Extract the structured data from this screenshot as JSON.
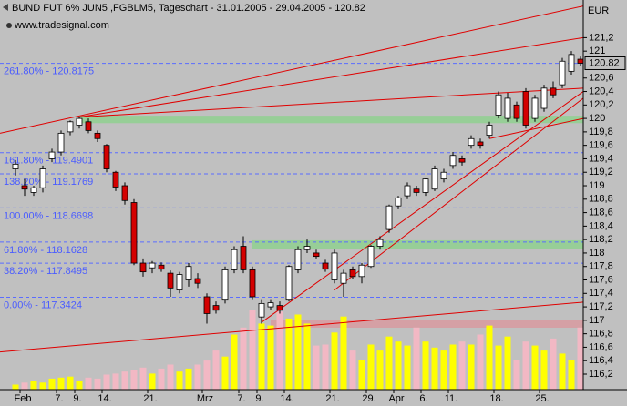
{
  "chart_data": {
    "type": "candlestick",
    "title": "BUND FUT 6% JUN5 ,FGBLM5, Tageschart - 31.01.2005 - 29.04.2005 - 120.82",
    "subtitle": "www.tradesignal.com",
    "currency": "EUR",
    "last_value": 120.82,
    "categories": [
      null,
      "Feb",
      null,
      null,
      null,
      "7.",
      null,
      "9.",
      null,
      null,
      "14.",
      null,
      null,
      null,
      null,
      "21.",
      null,
      null,
      null,
      null,
      null,
      "Mrz",
      null,
      null,
      null,
      "7.",
      null,
      "9.",
      null,
      null,
      "14.",
      null,
      null,
      null,
      null,
      "21.",
      null,
      null,
      null,
      "29.",
      null,
      null,
      "Apr",
      null,
      null,
      "6.",
      null,
      null,
      "11.",
      null,
      null,
      null,
      null,
      "18.",
      null,
      null,
      null,
      null,
      "25.",
      null,
      null,
      null,
      null
    ],
    "open": [
      119.25,
      119.0,
      118.9,
      118.97,
      119.4,
      119.5,
      119.8,
      119.9,
      119.95,
      119.78,
      119.6,
      119.2,
      119.0,
      118.75,
      117.85,
      117.78,
      117.82,
      117.7,
      117.45,
      117.6,
      117.62,
      117.35,
      117.22,
      117.3,
      117.75,
      118.1,
      117.75,
      117.05,
      117.2,
      117.22,
      117.3,
      117.75,
      118.05,
      118.0,
      117.85,
      117.6,
      117.55,
      117.75,
      117.65,
      117.8,
      118.1,
      118.35,
      118.7,
      118.85,
      118.95,
      118.9,
      118.95,
      119.1,
      119.3,
      119.4,
      119.6,
      119.65,
      119.75,
      120.05,
      120.0,
      120.2,
      120.4,
      120.0,
      120.15,
      120.45,
      120.5,
      120.7,
      120.88
    ],
    "high": [
      119.38,
      119.1,
      119.0,
      119.3,
      119.55,
      119.82,
      119.97,
      120.02,
      120.0,
      119.82,
      119.62,
      119.22,
      119.05,
      118.8,
      117.92,
      117.88,
      117.86,
      117.74,
      117.72,
      117.85,
      117.7,
      117.4,
      117.28,
      117.8,
      118.1,
      118.25,
      117.8,
      117.3,
      117.3,
      117.28,
      117.82,
      118.1,
      118.2,
      118.05,
      117.9,
      118.05,
      117.75,
      117.8,
      117.85,
      118.12,
      118.25,
      118.72,
      118.85,
      119.05,
      119.0,
      119.12,
      119.3,
      119.25,
      119.5,
      119.45,
      119.75,
      119.7,
      119.95,
      120.4,
      120.38,
      120.25,
      120.45,
      120.35,
      120.5,
      120.55,
      120.9,
      121.0,
      120.92
    ],
    "low": [
      119.15,
      118.85,
      118.85,
      118.9,
      119.35,
      119.45,
      119.75,
      119.85,
      119.78,
      119.65,
      119.2,
      118.92,
      118.72,
      117.82,
      117.65,
      117.7,
      117.72,
      117.35,
      117.4,
      117.5,
      117.48,
      116.95,
      117.1,
      117.25,
      117.7,
      117.7,
      117.3,
      116.95,
      117.15,
      117.1,
      117.28,
      117.7,
      118.0,
      117.92,
      117.72,
      117.55,
      117.35,
      117.62,
      117.55,
      117.78,
      118.05,
      118.3,
      118.65,
      118.8,
      118.85,
      118.85,
      118.92,
      119.05,
      119.25,
      119.3,
      119.55,
      119.55,
      119.7,
      120.0,
      119.95,
      119.95,
      119.85,
      119.95,
      120.1,
      120.3,
      120.45,
      120.65,
      120.78
    ],
    "close": [
      119.32,
      118.95,
      118.97,
      119.25,
      119.5,
      119.78,
      119.95,
      120.0,
      119.82,
      119.7,
      119.25,
      118.98,
      118.78,
      117.85,
      117.72,
      117.85,
      117.76,
      117.48,
      117.68,
      117.8,
      117.55,
      117.1,
      117.15,
      117.75,
      118.05,
      117.75,
      117.35,
      117.25,
      117.26,
      117.15,
      117.8,
      118.05,
      118.1,
      117.95,
      117.76,
      118.0,
      117.7,
      117.65,
      117.82,
      118.1,
      118.2,
      118.7,
      118.82,
      119.0,
      118.9,
      119.1,
      119.25,
      119.2,
      119.45,
      119.35,
      119.7,
      119.6,
      119.9,
      120.35,
      120.3,
      120.0,
      119.9,
      120.3,
      120.45,
      120.35,
      120.85,
      120.95,
      120.82
    ],
    "up_color": "#ffffff",
    "down_color": "#d40000",
    "volume": [
      5,
      7,
      9,
      7,
      11,
      12,
      13,
      9,
      12,
      11,
      15,
      16,
      18,
      20,
      22,
      16,
      21,
      25,
      18,
      21,
      25,
      29,
      39,
      33,
      55,
      62,
      80,
      66,
      64,
      78,
      71,
      75,
      66,
      44,
      45,
      57,
      73,
      39,
      30,
      45,
      39,
      53,
      48,
      44,
      62,
      48,
      42,
      39,
      45,
      48,
      45,
      55,
      64,
      44,
      53,
      30,
      48,
      44,
      39,
      51,
      36,
      30,
      62
    ],
    "vlim": [
      0,
      100
    ],
    "up_volume_color": "#ffff00",
    "down_volume_color": "#f2b8c4",
    "ylim": [
      115.97,
      121.76
    ],
    "yticks": [
      {
        "value": 121.2,
        "label": "121,2"
      },
      121,
      {
        "value": 120.6,
        "label": "120,6"
      },
      {
        "value": 120.4,
        "label": "120,4"
      },
      {
        "value": 120.2,
        "label": "120,2"
      },
      120,
      {
        "value": 119.8,
        "label": "119,8"
      },
      {
        "value": 119.6,
        "label": "119,6"
      },
      {
        "value": 119.4,
        "label": "119,4"
      },
      {
        "value": 119.2,
        "label": "119,2"
      },
      119,
      {
        "value": 118.8,
        "label": "118,8"
      },
      {
        "value": 118.6,
        "label": "118,6"
      },
      {
        "value": 118.4,
        "label": "118,4"
      },
      {
        "value": 118.2,
        "label": "118,2"
      },
      118,
      {
        "value": 117.8,
        "label": "117,8"
      },
      {
        "value": 117.6,
        "label": "117,6"
      },
      {
        "value": 117.4,
        "label": "117,4"
      },
      {
        "value": 117.2,
        "label": "117,2"
      },
      117,
      {
        "value": 116.8,
        "label": "116,8"
      },
      {
        "value": 116.6,
        "label": "116,6"
      },
      {
        "value": 116.4,
        "label": "116,4"
      },
      {
        "value": 116.2,
        "label": "116,2"
      }
    ],
    "fib_levels": [
      {
        "label": "261.80% - 120.8175",
        "value": 120.8175
      },
      {
        "label": "161.80% - 119.4901",
        "value": 119.4901
      },
      {
        "label": "138.20% - 119.1769",
        "value": 119.1769
      },
      {
        "label": "100.00% - 118.6698",
        "value": 118.6698
      },
      {
        "label": "61.80% - 118.1628",
        "value": 118.1628
      },
      {
        "label": "38.20% - 117.8495",
        "value": 117.8495
      },
      {
        "label": "0.00% - 117.3424",
        "value": 117.3424
      }
    ],
    "fib_color": "#5a6cff",
    "trend_color": "#e00000",
    "trend_lines": [
      {
        "x": [
          -1.7,
          62.3
        ],
        "y": [
          119.78,
          121.67
        ]
      },
      {
        "x": [
          7,
          62.3
        ],
        "y": [
          120.02,
          121.2
        ]
      },
      {
        "x": [
          7,
          62.3
        ],
        "y": [
          120.02,
          120.45
        ]
      },
      {
        "x": [
          -1.7,
          62.3
        ],
        "y": [
          116.53,
          117.27
        ]
      },
      {
        "x": [
          27,
          62.3
        ],
        "y": [
          116.97,
          120.4
        ]
      },
      {
        "x": [
          35,
          62.3
        ],
        "y": [
          117.45,
          120.3
        ]
      },
      {
        "x": [
          52,
          62.3
        ],
        "y": [
          119.7,
          120.0
        ]
      }
    ],
    "zones": [
      {
        "from": 7,
        "low": 119.93,
        "high": 120.04,
        "color": "#8fd08f"
      },
      {
        "from": 26,
        "low": 118.06,
        "high": 118.19,
        "color": "#8fd08f"
      },
      {
        "from": 28,
        "low": 116.89,
        "high": 117.01,
        "color": "#d89aa0"
      }
    ]
  }
}
